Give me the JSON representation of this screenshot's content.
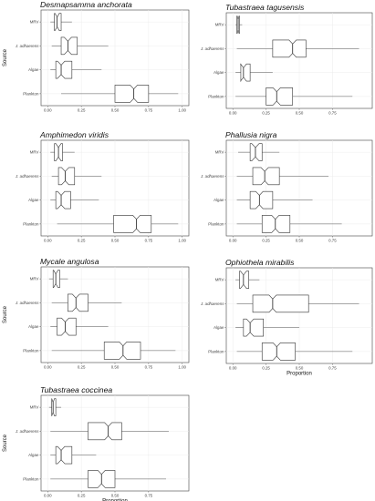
{
  "chart_data": [
    {
      "type": "boxplot",
      "title": "Desmapsamma anchorata",
      "xlabel": "",
      "ylabel": "Source",
      "xlim": [
        0,
        1
      ],
      "x_ticks": [
        "0.00",
        "0.25",
        "0.50",
        "0.75",
        "1.00"
      ],
      "categories": [
        "MRV",
        "J. adhaerens",
        "Algae",
        "Plankton"
      ],
      "boxes": [
        {
          "whisker_low": 0.02,
          "q1": 0.05,
          "median": 0.07,
          "q3": 0.1,
          "whisker_high": 0.18
        },
        {
          "whisker_low": 0.03,
          "q1": 0.1,
          "median": 0.15,
          "q3": 0.22,
          "whisker_high": 0.45
        },
        {
          "whisker_low": 0.02,
          "q1": 0.06,
          "median": 0.1,
          "q3": 0.18,
          "whisker_high": 0.4
        },
        {
          "whisker_low": 0.1,
          "q1": 0.5,
          "median": 0.64,
          "q3": 0.75,
          "whisker_high": 0.97
        }
      ]
    },
    {
      "type": "boxplot",
      "title": "Tubastraea tagusensis",
      "xlabel": "",
      "ylabel": "",
      "xlim": [
        0,
        1
      ],
      "x_ticks": [
        "0.00",
        "0.25",
        "0.50",
        "0.75"
      ],
      "categories": [
        "MRV",
        "J. adhaerens",
        "Algae",
        "Plankton"
      ],
      "boxes": [
        {
          "whisker_low": 0.02,
          "q1": 0.03,
          "median": 0.04,
          "q3": 0.05,
          "whisker_high": 0.07
        },
        {
          "whisker_low": 0.03,
          "q1": 0.3,
          "median": 0.45,
          "q3": 0.55,
          "whisker_high": 0.95
        },
        {
          "whisker_low": 0.02,
          "q1": 0.06,
          "median": 0.08,
          "q3": 0.13,
          "whisker_high": 0.3
        },
        {
          "whisker_low": 0.02,
          "q1": 0.25,
          "median": 0.33,
          "q3": 0.45,
          "whisker_high": 0.9
        }
      ]
    },
    {
      "type": "boxplot",
      "title": "Amphimedon viridis",
      "xlabel": "",
      "ylabel": "",
      "xlim": [
        0,
        1
      ],
      "x_ticks": [
        "0.00",
        "0.25",
        "0.50",
        "0.75",
        "1.00"
      ],
      "categories": [
        "MRV",
        "J. adhaerens",
        "Algae",
        "Plankton"
      ],
      "boxes": [
        {
          "whisker_low": 0.02,
          "q1": 0.05,
          "median": 0.08,
          "q3": 0.11,
          "whisker_high": 0.2
        },
        {
          "whisker_low": 0.03,
          "q1": 0.08,
          "median": 0.13,
          "q3": 0.2,
          "whisker_high": 0.4
        },
        {
          "whisker_low": 0.02,
          "q1": 0.06,
          "median": 0.1,
          "q3": 0.17,
          "whisker_high": 0.38
        },
        {
          "whisker_low": 0.07,
          "q1": 0.49,
          "median": 0.66,
          "q3": 0.77,
          "whisker_high": 0.97
        }
      ]
    },
    {
      "type": "boxplot",
      "title": "Phallusia nigra",
      "xlabel": "",
      "ylabel": "",
      "xlim": [
        0,
        1
      ],
      "x_ticks": [
        "0.00",
        "0.25",
        "0.50",
        "0.75"
      ],
      "categories": [
        "MRV",
        "J. adhaerens",
        "Algae",
        "Plankton"
      ],
      "boxes": [
        {
          "whisker_low": 0.04,
          "q1": 0.13,
          "median": 0.17,
          "q3": 0.22,
          "whisker_high": 0.35
        },
        {
          "whisker_low": 0.03,
          "q1": 0.15,
          "median": 0.24,
          "q3": 0.35,
          "whisker_high": 0.72
        },
        {
          "whisker_low": 0.03,
          "q1": 0.13,
          "median": 0.2,
          "q3": 0.3,
          "whisker_high": 0.6
        },
        {
          "whisker_low": 0.03,
          "q1": 0.22,
          "median": 0.32,
          "q3": 0.43,
          "whisker_high": 0.82
        }
      ]
    },
    {
      "type": "boxplot",
      "title": "Mycale angulosa",
      "xlabel": "",
      "ylabel": "Source",
      "xlim": [
        0,
        1
      ],
      "x_ticks": [
        "0.00",
        "0.25",
        "0.50",
        "0.75",
        "1.00"
      ],
      "categories": [
        "MRV",
        "J. adhaerens",
        "Algae",
        "Plankton"
      ],
      "boxes": [
        {
          "whisker_low": 0.01,
          "q1": 0.04,
          "median": 0.06,
          "q3": 0.09,
          "whisker_high": 0.15
        },
        {
          "whisker_low": 0.03,
          "q1": 0.15,
          "median": 0.21,
          "q3": 0.3,
          "whisker_high": 0.55
        },
        {
          "whisker_low": 0.02,
          "q1": 0.07,
          "median": 0.13,
          "q3": 0.21,
          "whisker_high": 0.45
        },
        {
          "whisker_low": 0.03,
          "q1": 0.42,
          "median": 0.56,
          "q3": 0.69,
          "whisker_high": 0.95
        }
      ]
    },
    {
      "type": "boxplot",
      "title": "Ophiothela mirabilis",
      "xlabel": "Proportion",
      "ylabel": "",
      "xlim": [
        0,
        1
      ],
      "x_ticks": [
        "0.00",
        "0.25",
        "0.50",
        "0.75"
      ],
      "categories": [
        "MRV",
        "J. adhaerens",
        "Algae",
        "Plankton"
      ],
      "boxes": [
        {
          "whisker_low": 0.02,
          "q1": 0.05,
          "median": 0.08,
          "q3": 0.12,
          "whisker_high": 0.2
        },
        {
          "whisker_low": 0.03,
          "q1": 0.15,
          "median": 0.3,
          "q3": 0.57,
          "whisker_high": 0.95
        },
        {
          "whisker_low": 0.02,
          "q1": 0.08,
          "median": 0.13,
          "q3": 0.23,
          "whisker_high": 0.5
        },
        {
          "whisker_low": 0.03,
          "q1": 0.22,
          "median": 0.33,
          "q3": 0.47,
          "whisker_high": 0.9
        }
      ]
    },
    {
      "type": "boxplot",
      "title": "Tubastraea coccinea",
      "xlabel": "Proportion",
      "ylabel": "Source",
      "xlim": [
        0,
        1
      ],
      "x_ticks": [
        "0.00",
        "0.25",
        "0.50",
        "0.75"
      ],
      "categories": [
        "MRV",
        "J. adhaerens",
        "Algae",
        "Plankton"
      ],
      "boxes": [
        {
          "whisker_low": 0.01,
          "q1": 0.03,
          "median": 0.04,
          "q3": 0.06,
          "whisker_high": 0.1
        },
        {
          "whisker_low": 0.02,
          "q1": 0.3,
          "median": 0.45,
          "q3": 0.55,
          "whisker_high": 0.9
        },
        {
          "whisker_low": 0.02,
          "q1": 0.06,
          "median": 0.1,
          "q3": 0.18,
          "whisker_high": 0.36
        },
        {
          "whisker_low": 0.02,
          "q1": 0.3,
          "median": 0.4,
          "q3": 0.5,
          "whisker_high": 0.88
        }
      ]
    }
  ]
}
